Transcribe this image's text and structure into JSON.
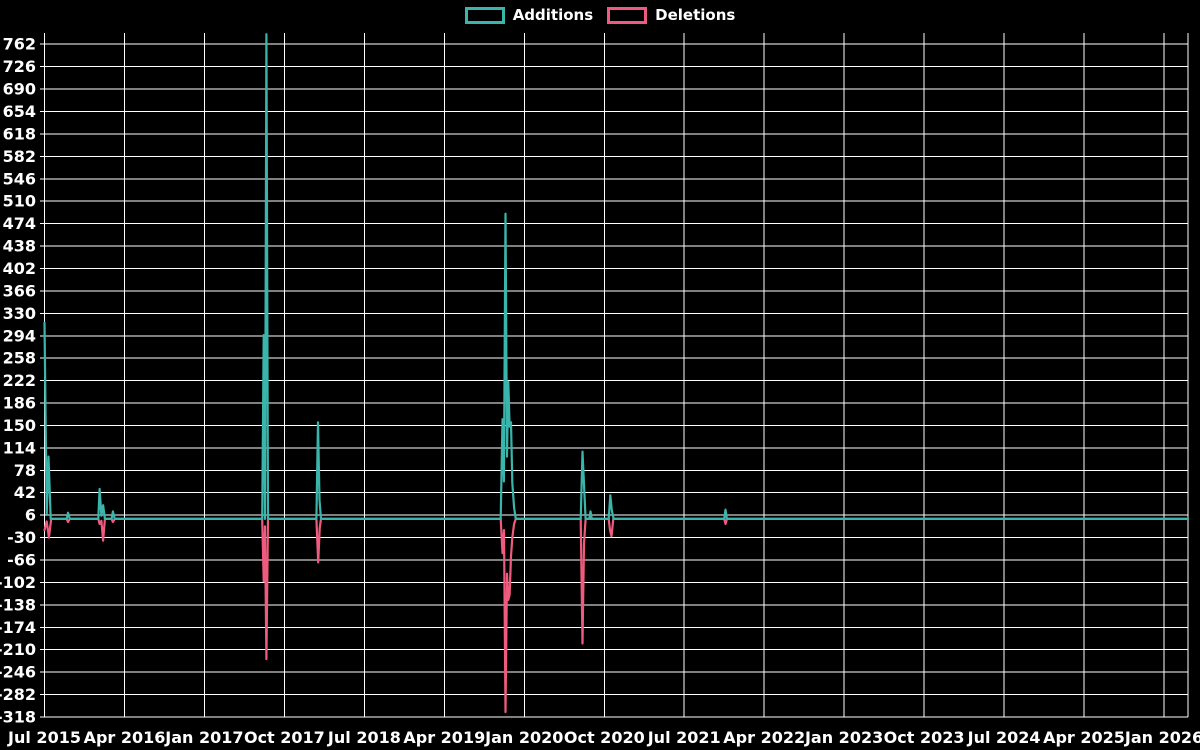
{
  "legend": {
    "items": [
      {
        "label": "Additions",
        "color": "#3ab5ac"
      },
      {
        "label": "Deletions",
        "color": "#ef5b7e"
      }
    ]
  },
  "chart_data": {
    "type": "line",
    "title": "",
    "xlabel": "",
    "ylabel": "",
    "grid": true,
    "legend_position": "top-center",
    "background_color": "#000000",
    "gridline_color": "#ffffff",
    "ylim": [
      -318,
      780
    ],
    "y_tick_step": 36,
    "y_ticks": [
      762,
      726,
      690,
      654,
      618,
      582,
      546,
      510,
      474,
      438,
      402,
      366,
      330,
      294,
      258,
      222,
      186,
      150,
      114,
      78,
      42,
      6,
      -30,
      -66,
      -102,
      -138,
      -174,
      -210,
      -246,
      -282,
      -318
    ],
    "x_ticks": [
      {
        "label": "Jul 2015",
        "month": 0
      },
      {
        "label": "Apr 2016",
        "month": 9
      },
      {
        "label": "Jan 2017",
        "month": 18
      },
      {
        "label": "Oct 2017",
        "month": 27
      },
      {
        "label": "Jul 2018",
        "month": 36
      },
      {
        "label": "Apr 2019",
        "month": 45
      },
      {
        "label": "Jan 2020",
        "month": 54
      },
      {
        "label": "Oct 2020",
        "month": 63
      },
      {
        "label": "Jul 2021",
        "month": 72
      },
      {
        "label": "Apr 2022",
        "month": 81
      },
      {
        "label": "Jan 2023",
        "month": 90
      },
      {
        "label": "Oct 2023",
        "month": 99
      },
      {
        "label": "Jul 2024",
        "month": 108
      },
      {
        "label": "Apr 2025",
        "month": 117
      },
      {
        "label": "Jan 2026",
        "month": 126
      }
    ],
    "xlim_months": [
      0,
      128.7
    ],
    "series": [
      {
        "name": "Additions",
        "color": "#3ab5ac",
        "points": [
          [
            0,
            315
          ],
          [
            0.25,
            8
          ],
          [
            0.45,
            100
          ],
          [
            0.7,
            0
          ],
          [
            2.5,
            0
          ],
          [
            2.65,
            10
          ],
          [
            2.85,
            0
          ],
          [
            6.05,
            0
          ],
          [
            6.2,
            48
          ],
          [
            6.4,
            5
          ],
          [
            6.6,
            22
          ],
          [
            6.8,
            0
          ],
          [
            7.55,
            0
          ],
          [
            7.7,
            12
          ],
          [
            7.9,
            0
          ],
          [
            24.5,
            0
          ],
          [
            24.67,
            295
          ],
          [
            24.82,
            0
          ],
          [
            24.97,
            778
          ],
          [
            25.15,
            0
          ],
          [
            30.6,
            0
          ],
          [
            30.78,
            155
          ],
          [
            30.95,
            30
          ],
          [
            31.12,
            0
          ],
          [
            51.35,
            0
          ],
          [
            51.55,
            160
          ],
          [
            51.7,
            60
          ],
          [
            51.88,
            490
          ],
          [
            52.05,
            100
          ],
          [
            52.2,
            220
          ],
          [
            52.35,
            148
          ],
          [
            52.5,
            155
          ],
          [
            52.65,
            58
          ],
          [
            52.85,
            18
          ],
          [
            53.05,
            0
          ],
          [
            60.35,
            0
          ],
          [
            60.55,
            108
          ],
          [
            60.72,
            55
          ],
          [
            60.9,
            0
          ],
          [
            61.3,
            0
          ],
          [
            61.45,
            12
          ],
          [
            61.6,
            0
          ],
          [
            63.5,
            0
          ],
          [
            63.68,
            38
          ],
          [
            63.85,
            14
          ],
          [
            64.05,
            0
          ],
          [
            76.5,
            0
          ],
          [
            76.65,
            15
          ],
          [
            76.8,
            0
          ],
          [
            128.7,
            0
          ]
        ]
      },
      {
        "name": "Deletions",
        "color": "#ef5b7e",
        "points": [
          [
            0,
            -18
          ],
          [
            0.25,
            -4
          ],
          [
            0.5,
            -30
          ],
          [
            0.75,
            0
          ],
          [
            2.5,
            0
          ],
          [
            2.65,
            -5
          ],
          [
            2.85,
            0
          ],
          [
            6.05,
            0
          ],
          [
            6.2,
            -8
          ],
          [
            6.4,
            -3
          ],
          [
            6.6,
            -35
          ],
          [
            6.8,
            0
          ],
          [
            7.55,
            0
          ],
          [
            7.7,
            -5
          ],
          [
            7.9,
            0
          ],
          [
            24.5,
            0
          ],
          [
            24.67,
            -100
          ],
          [
            24.82,
            -12
          ],
          [
            24.97,
            -225
          ],
          [
            25.15,
            0
          ],
          [
            30.6,
            0
          ],
          [
            30.8,
            -70
          ],
          [
            30.97,
            -15
          ],
          [
            31.12,
            0
          ],
          [
            51.35,
            0
          ],
          [
            51.55,
            -55
          ],
          [
            51.72,
            -18
          ],
          [
            51.88,
            -310
          ],
          [
            52.05,
            -88
          ],
          [
            52.2,
            -130
          ],
          [
            52.35,
            -122
          ],
          [
            52.5,
            -60
          ],
          [
            52.65,
            -30
          ],
          [
            52.85,
            -8
          ],
          [
            53.05,
            0
          ],
          [
            60.35,
            0
          ],
          [
            60.55,
            -200
          ],
          [
            60.72,
            -40
          ],
          [
            60.9,
            0
          ],
          [
            63.5,
            0
          ],
          [
            63.65,
            -18
          ],
          [
            63.82,
            -28
          ],
          [
            64.02,
            0
          ],
          [
            76.5,
            0
          ],
          [
            76.65,
            -8
          ],
          [
            76.8,
            0
          ],
          [
            128.7,
            0
          ]
        ]
      }
    ]
  }
}
